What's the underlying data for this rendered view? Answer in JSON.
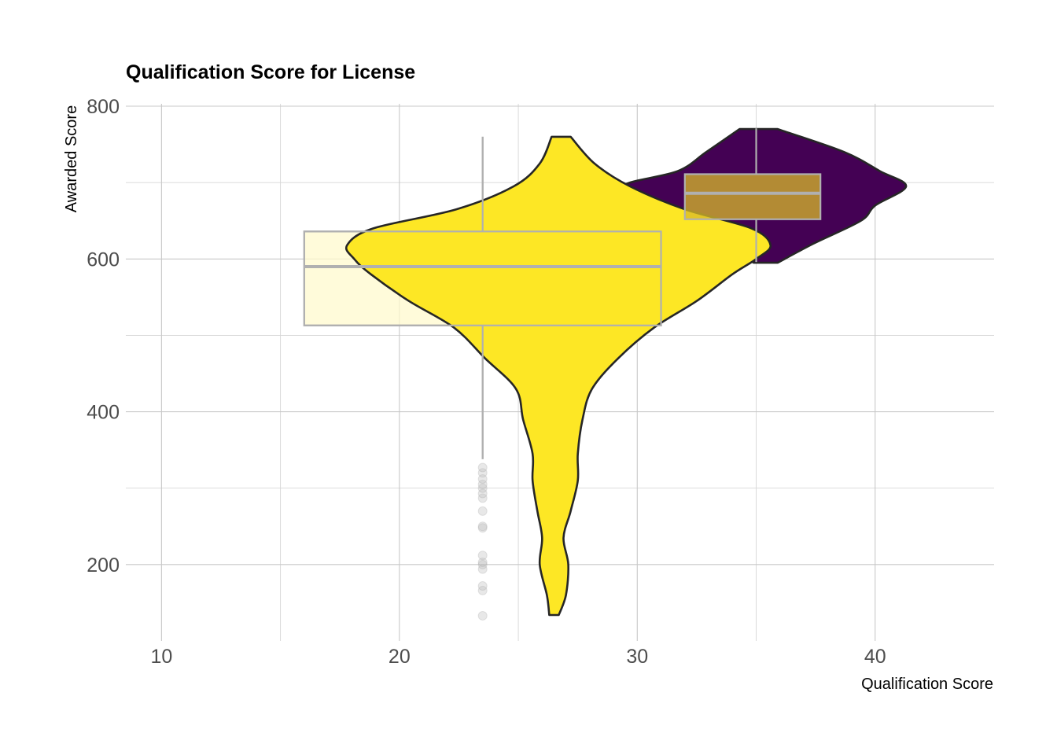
{
  "chart_data": {
    "type": "violin",
    "title": "Qualification Score for License",
    "xlabel": "Qualification Score",
    "ylabel": "Awarded Score",
    "xlim": [
      8.5,
      45
    ],
    "ylim": [
      100,
      800
    ],
    "x_ticks": [
      10,
      20,
      30,
      40
    ],
    "x_tick_labels": [
      "10",
      "20",
      "30",
      "40"
    ],
    "y_ticks": [
      200,
      400,
      600,
      800
    ],
    "y_tick_labels": [
      "200",
      "400",
      "600",
      "800"
    ],
    "grid": true,
    "legend": "none",
    "violins": [
      {
        "group": "yellow",
        "color": "#FDE725",
        "outline": "#262626",
        "profile": [
          {
            "y": 134,
            "left": 26.3,
            "right": 26.7
          },
          {
            "y": 160,
            "left": 26.2,
            "right": 27.0
          },
          {
            "y": 200,
            "left": 25.9,
            "right": 27.1
          },
          {
            "y": 235,
            "left": 26.0,
            "right": 26.9
          },
          {
            "y": 270,
            "left": 25.8,
            "right": 27.2
          },
          {
            "y": 310,
            "left": 25.6,
            "right": 27.5
          },
          {
            "y": 345,
            "left": 25.6,
            "right": 27.5
          },
          {
            "y": 390,
            "left": 25.2,
            "right": 27.7
          },
          {
            "y": 430,
            "left": 24.9,
            "right": 28.1
          },
          {
            "y": 470,
            "left": 23.6,
            "right": 29.2
          },
          {
            "y": 510,
            "left": 22.3,
            "right": 30.7
          },
          {
            "y": 545,
            "left": 20.4,
            "right": 32.5
          },
          {
            "y": 580,
            "left": 18.8,
            "right": 34.0
          },
          {
            "y": 600,
            "left": 18.1,
            "right": 35.0
          },
          {
            "y": 618,
            "left": 17.8,
            "right": 35.6
          },
          {
            "y": 640,
            "left": 18.9,
            "right": 34.8
          },
          {
            "y": 665,
            "left": 22.4,
            "right": 32.0
          },
          {
            "y": 695,
            "left": 24.8,
            "right": 29.7
          },
          {
            "y": 725,
            "left": 25.9,
            "right": 28.2
          },
          {
            "y": 760,
            "left": 26.4,
            "right": 27.2
          }
        ]
      },
      {
        "group": "purple",
        "color": "#440154",
        "outline": "#262626",
        "profile": [
          {
            "y": 595,
            "left": 34.9,
            "right": 35.9
          },
          {
            "y": 620,
            "left": 33.4,
            "right": 37.4
          },
          {
            "y": 650,
            "left": 32.1,
            "right": 39.4
          },
          {
            "y": 670,
            "left": 31.2,
            "right": 40.0
          },
          {
            "y": 695,
            "left": 29.4,
            "right": 41.3
          },
          {
            "y": 715,
            "left": 31.7,
            "right": 40.2
          },
          {
            "y": 740,
            "left": 32.9,
            "right": 38.7
          },
          {
            "y": 770,
            "left": 34.3,
            "right": 35.9
          }
        ]
      }
    ],
    "boxplots": [
      {
        "group": "yellow",
        "x_left": 16.0,
        "x_right": 31.0,
        "x_center": 23.5,
        "q1": 513,
        "median": 590,
        "q3": 636,
        "whisker_low": 338,
        "whisker_high": 760,
        "fill": "#FFFACD",
        "stroke": "#b0b0b0",
        "outliers": [
          133,
          166,
          172,
          194,
          200,
          203,
          212,
          248,
          250,
          270,
          287,
          293,
          300,
          305,
          312,
          320,
          327
        ]
      },
      {
        "group": "purple",
        "x_left": 32.0,
        "x_right": 37.7,
        "x_center": 35.0,
        "q1": 652,
        "median": 686,
        "q3": 711,
        "whisker_low": 596,
        "whisker_high": 771,
        "fill": "#D8B92A",
        "stroke": "#b0b0b0",
        "outliers": []
      }
    ]
  }
}
